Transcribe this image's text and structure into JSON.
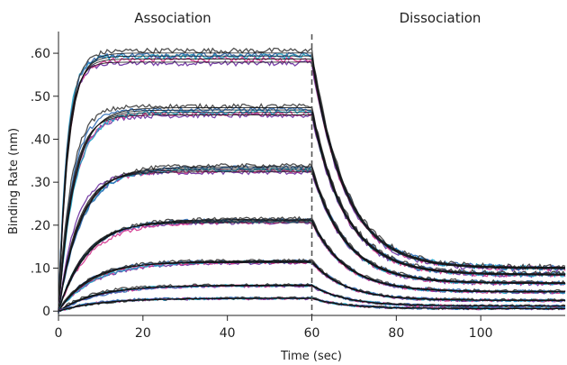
{
  "chart_data": {
    "type": "line",
    "title": "",
    "xlabel": "Time (sec)",
    "ylabel": "Binding Rate (nm)",
    "xlim": [
      0,
      120
    ],
    "ylim": [
      -0.01,
      0.64
    ],
    "x_ticks": [
      0,
      20,
      40,
      60,
      80,
      100
    ],
    "x_tick_labels": [
      "0",
      "20",
      "40",
      "60",
      "80",
      "100"
    ],
    "y_ticks": [
      0,
      0.1,
      0.2,
      0.3,
      0.4,
      0.5,
      0.6
    ],
    "y_tick_labels": [
      "0",
      ".10",
      ".20",
      ".30",
      ".40",
      ".50",
      ".60"
    ],
    "grid": false,
    "legend": false,
    "phase_labels": [
      "Association",
      "Dissociation"
    ],
    "phase_boundary_x": 60,
    "association_end_x": 60,
    "dissociation_end_x": 120,
    "measured_colors": [
      "#6b2fa0",
      "#d4358f",
      "#1ba3c6",
      "#2f6cb5",
      "#3c3c3c"
    ],
    "fit_color": "#111111",
    "series": [
      {
        "plateau": 0.59,
        "tau_assoc": 2.2,
        "residual": 0.1,
        "tau_dissoc": 8
      },
      {
        "plateau": 0.465,
        "tau_assoc": 3.5,
        "residual": 0.085,
        "tau_dissoc": 8
      },
      {
        "plateau": 0.33,
        "tau_assoc": 5,
        "residual": 0.065,
        "tau_dissoc": 8
      },
      {
        "plateau": 0.21,
        "tau_assoc": 6.5,
        "residual": 0.045,
        "tau_dissoc": 8
      },
      {
        "plateau": 0.115,
        "tau_assoc": 7.5,
        "residual": 0.025,
        "tau_dissoc": 8
      },
      {
        "plateau": 0.06,
        "tau_assoc": 9,
        "residual": 0.012,
        "tau_dissoc": 8
      },
      {
        "plateau": 0.03,
        "tau_assoc": 10,
        "residual": 0.006,
        "tau_dissoc": 8
      }
    ]
  }
}
